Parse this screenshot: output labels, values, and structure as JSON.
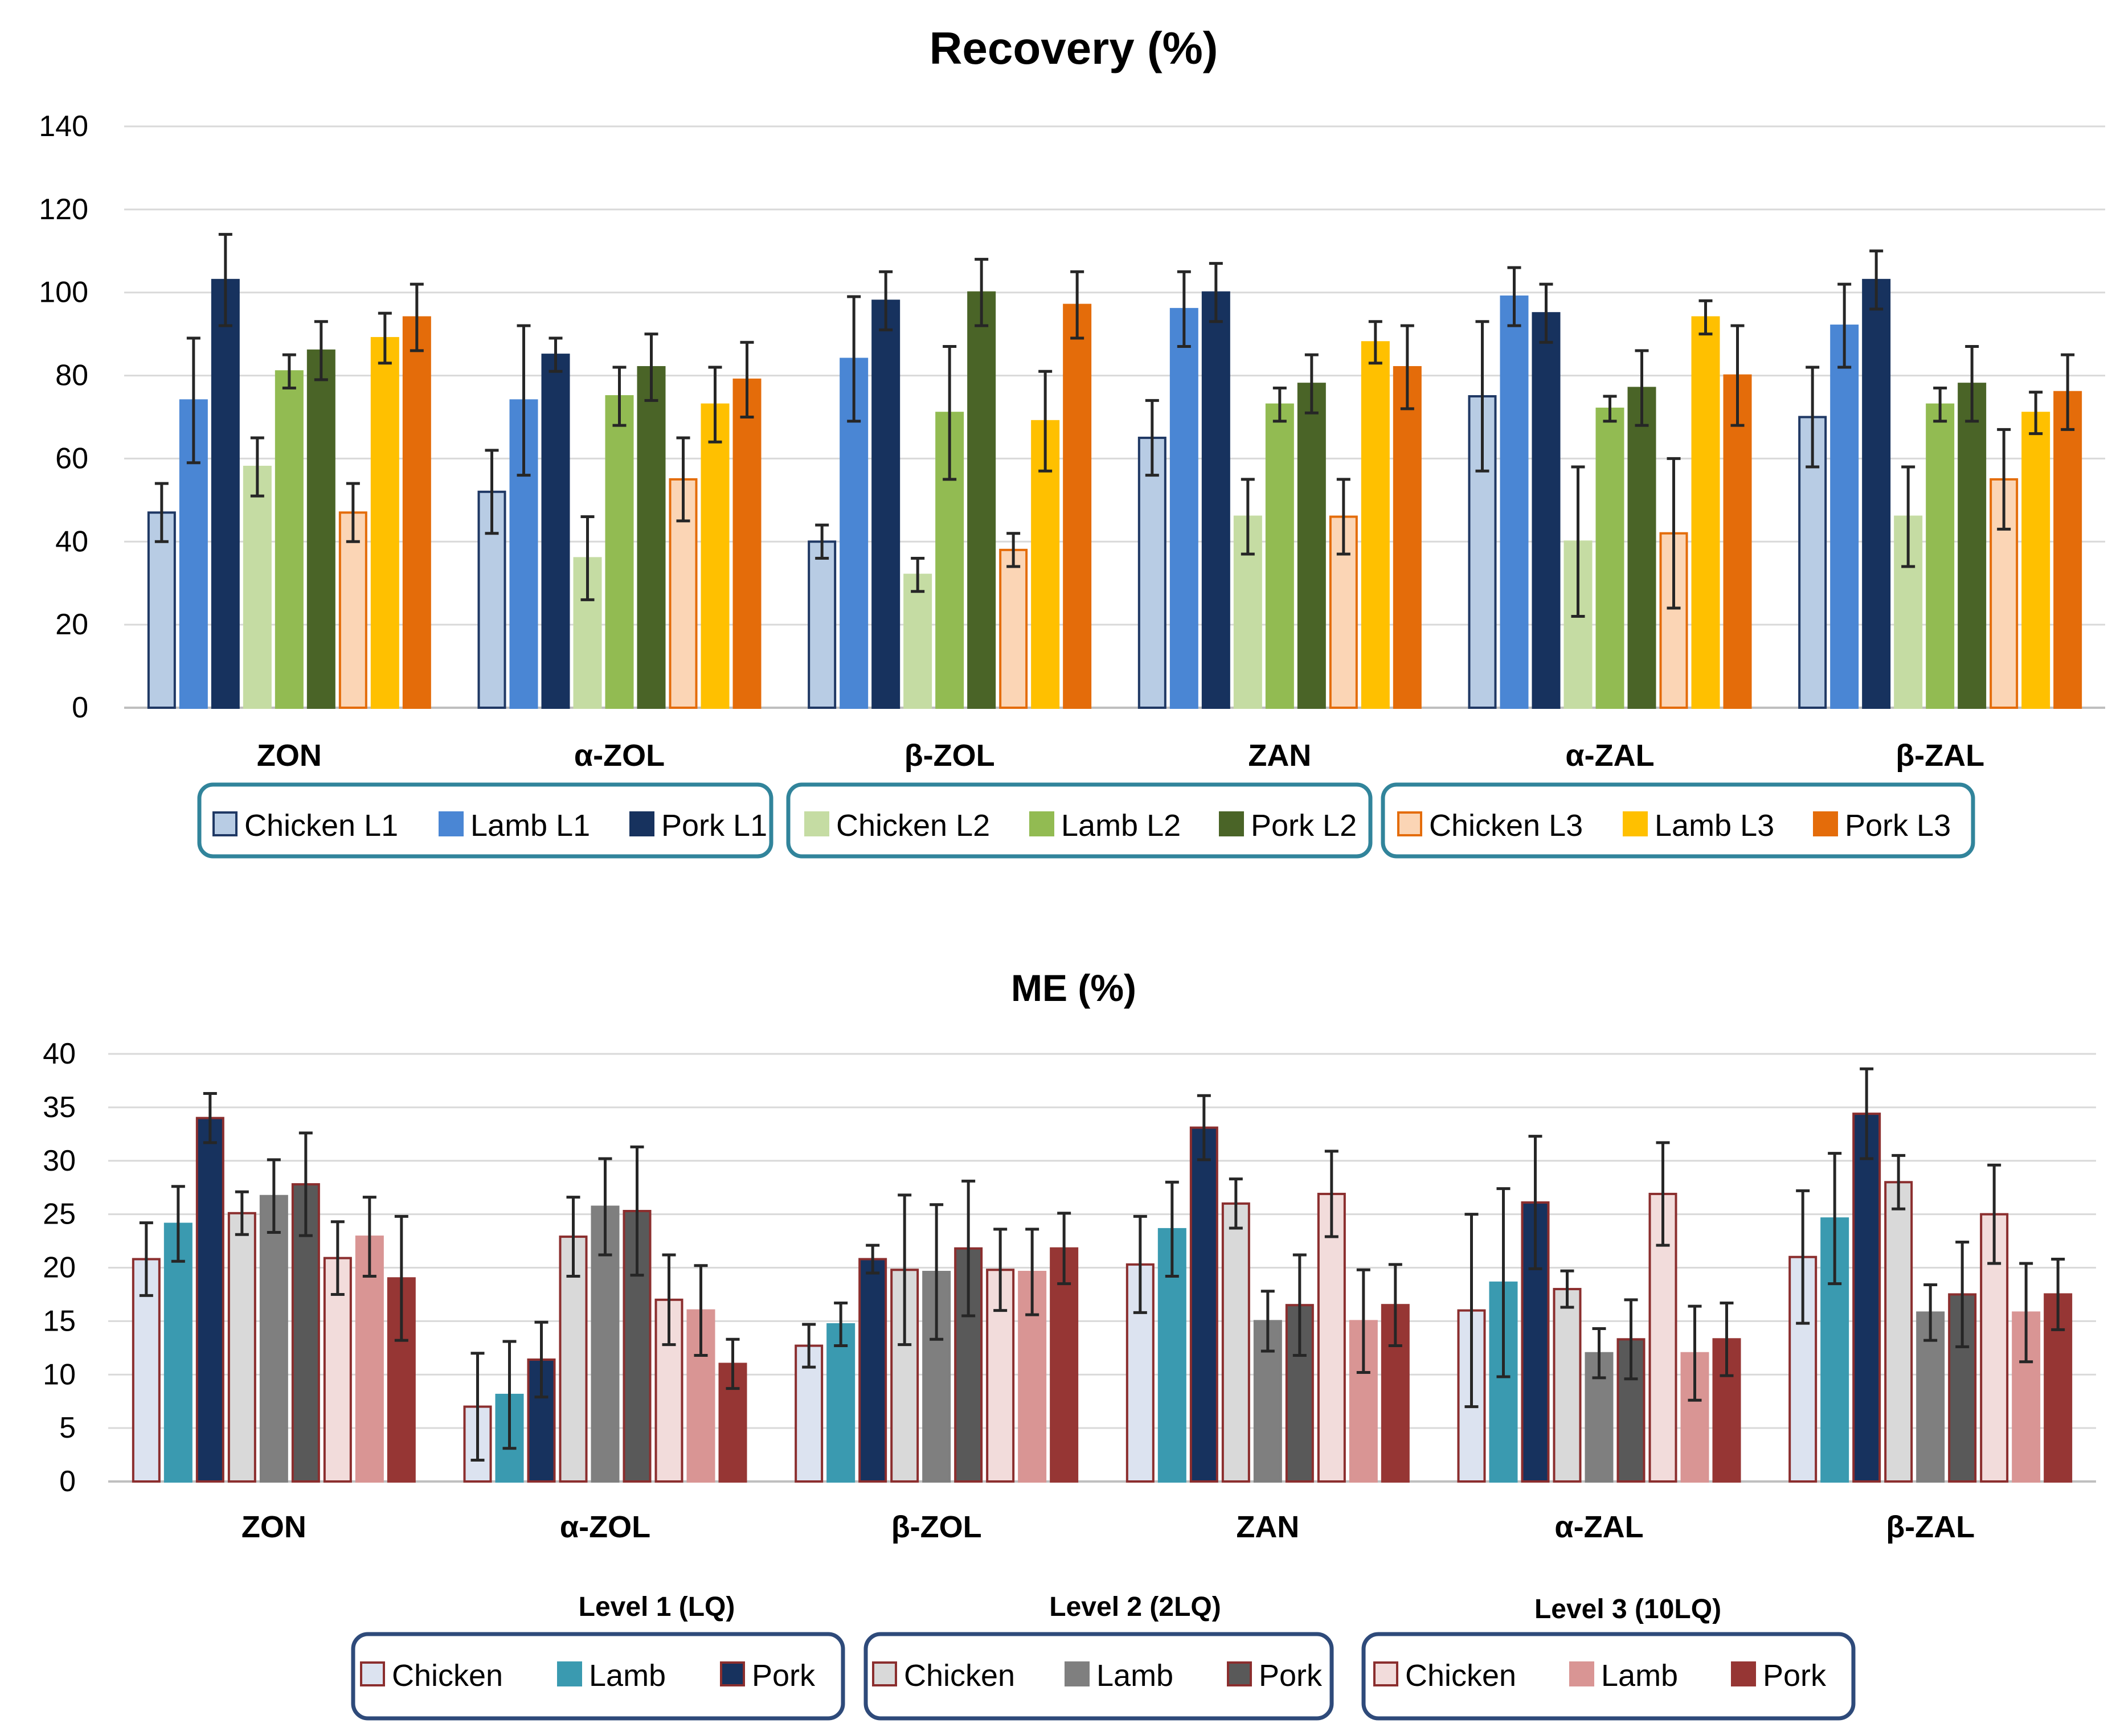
{
  "chart_data": [
    {
      "type": "bar",
      "title": "Recovery (%)",
      "xlabel": "",
      "ylabel": "",
      "ylim": [
        0,
        140
      ],
      "yticks": [
        0,
        20,
        40,
        60,
        80,
        100,
        120,
        140
      ],
      "grid": true,
      "legend_position": "bottom",
      "categories": [
        "ZON",
        "α-ZOL",
        "β-ZOL",
        "ZAN",
        "α-ZAL",
        "β-ZAL"
      ],
      "series": [
        {
          "name": "Chicken L1",
          "fill": "#b8cce4",
          "stroke": "#1f3864",
          "values": [
            47,
            52,
            40,
            65,
            75,
            70
          ],
          "errors": [
            7,
            10,
            4,
            9,
            18,
            12
          ]
        },
        {
          "name": "Lamb L1",
          "fill": "#4a86d4",
          "stroke": "#4a86d4",
          "values": [
            74,
            74,
            84,
            96,
            99,
            92
          ],
          "errors": [
            15,
            18,
            15,
            9,
            7,
            10
          ]
        },
        {
          "name": "Pork L1",
          "fill": "#17325e",
          "stroke": "#17325e",
          "values": [
            103,
            85,
            98,
            100,
            95,
            103
          ],
          "errors": [
            11,
            4,
            7,
            7,
            7,
            7
          ]
        },
        {
          "name": "Chicken L2",
          "fill": "#c5dca3",
          "stroke": "#c5dca3",
          "values": [
            58,
            36,
            32,
            46,
            40,
            46
          ],
          "errors": [
            7,
            10,
            4,
            9,
            18,
            12
          ]
        },
        {
          "name": "Lamb L2",
          "fill": "#92bb52",
          "stroke": "#92bb52",
          "values": [
            81,
            75,
            71,
            73,
            72,
            73
          ],
          "errors": [
            4,
            7,
            16,
            4,
            3,
            4
          ]
        },
        {
          "name": "Pork L2",
          "fill": "#4a6427",
          "stroke": "#4a6427",
          "values": [
            86,
            82,
            100,
            78,
            77,
            78
          ],
          "errors": [
            7,
            8,
            8,
            7,
            9,
            9
          ]
        },
        {
          "name": "Chicken L3",
          "fill": "#fbd5b5",
          "stroke": "#e46c0a",
          "values": [
            47,
            55,
            38,
            46,
            42,
            55
          ],
          "errors": [
            7,
            10,
            4,
            9,
            18,
            12
          ]
        },
        {
          "name": "Lamb L3",
          "fill": "#ffc000",
          "stroke": "#ffc000",
          "values": [
            89,
            73,
            69,
            88,
            94,
            71
          ],
          "errors": [
            6,
            9,
            12,
            5,
            4,
            5
          ]
        },
        {
          "name": "Pork L3",
          "fill": "#e46c0a",
          "stroke": "#e46c0a",
          "values": [
            94,
            79,
            97,
            82,
            80,
            76
          ],
          "errors": [
            8,
            9,
            8,
            10,
            12,
            9
          ]
        }
      ],
      "legend_groups": [
        [
          0,
          1,
          2
        ],
        [
          3,
          4,
          5
        ],
        [
          6,
          7,
          8
        ]
      ]
    },
    {
      "type": "bar",
      "title": "ME (%)",
      "xlabel": "",
      "ylabel": "",
      "ylim": [
        0,
        40
      ],
      "yticks": [
        0,
        5,
        10,
        15,
        20,
        25,
        30,
        35,
        40
      ],
      "grid": true,
      "legend_position": "bottom",
      "categories": [
        "ZON",
        "α-ZOL",
        "β-ZOL",
        "ZAN",
        "α-ZAL",
        "β-ZAL"
      ],
      "group_titles": [
        "Level 1 (LQ)",
        "Level 2 (2LQ)",
        "Level 3 (10LQ)"
      ],
      "series": [
        {
          "name": "Chicken",
          "group": "Level 1 (LQ)",
          "fill": "#dce3f0",
          "stroke": "#8b2e2e",
          "values": [
            20.8,
            7,
            12.7,
            20.3,
            16,
            21
          ],
          "errors": [
            3.4,
            5,
            2,
            4.5,
            9,
            6.2
          ]
        },
        {
          "name": "Lamb",
          "group": "Level 1 (LQ)",
          "fill": "#3a9ab0",
          "stroke": "#3a9ab0",
          "values": [
            24.1,
            8.1,
            14.7,
            23.6,
            18.6,
            24.6
          ],
          "errors": [
            3.5,
            5,
            2,
            4.4,
            8.8,
            6.1
          ]
        },
        {
          "name": "Pork",
          "group": "Level 1 (LQ)",
          "fill": "#17325e",
          "stroke": "#8b2e2e",
          "values": [
            34,
            11.4,
            20.8,
            33.1,
            26.1,
            34.4
          ],
          "errors": [
            2.3,
            3.5,
            1.3,
            3,
            6.2,
            4.2
          ]
        },
        {
          "name": "Chicken",
          "group": "Level 2 (2LQ)",
          "fill": "#d9d9d9",
          "stroke": "#8b2e2e",
          "values": [
            25.1,
            22.9,
            19.8,
            26,
            18,
            28
          ],
          "errors": [
            2,
            3.7,
            7,
            2.3,
            1.7,
            2.5
          ]
        },
        {
          "name": "Lamb",
          "group": "Level 2 (2LQ)",
          "fill": "#7f7f7f",
          "stroke": "#7f7f7f",
          "values": [
            26.7,
            25.7,
            19.6,
            15,
            12,
            15.8
          ],
          "errors": [
            3.4,
            4.5,
            6.3,
            2.8,
            2.3,
            2.6
          ]
        },
        {
          "name": "Pork",
          "group": "Level 2 (2LQ)",
          "fill": "#595959",
          "stroke": "#8b2e2e",
          "values": [
            27.8,
            25.3,
            21.8,
            16.5,
            13.3,
            17.5
          ],
          "errors": [
            4.8,
            6,
            6.3,
            4.7,
            3.7,
            4.9
          ]
        },
        {
          "name": "Chicken",
          "group": "Level 3 (10LQ)",
          "fill": "#f2dcdb",
          "stroke": "#8b2e2e",
          "values": [
            20.9,
            17,
            19.8,
            26.9,
            26.9,
            25
          ],
          "errors": [
            3.4,
            4.2,
            3.8,
            4,
            4.8,
            4.6
          ]
        },
        {
          "name": "Lamb",
          "group": "Level 3 (10LQ)",
          "fill": "#d99594",
          "stroke": "#d99594",
          "values": [
            22.9,
            16,
            19.6,
            15,
            12,
            15.8
          ],
          "errors": [
            3.7,
            4.2,
            4,
            4.8,
            4.4,
            4.6
          ]
        },
        {
          "name": "Pork",
          "group": "Level 3 (10LQ)",
          "fill": "#963634",
          "stroke": "#963634",
          "values": [
            19,
            11,
            21.8,
            16.5,
            13.3,
            17.5
          ],
          "errors": [
            5.8,
            2.3,
            3.3,
            3.8,
            3.4,
            3.3
          ]
        }
      ],
      "legend_groups": [
        [
          0,
          1,
          2
        ],
        [
          3,
          4,
          5
        ],
        [
          6,
          7,
          8
        ]
      ]
    }
  ]
}
